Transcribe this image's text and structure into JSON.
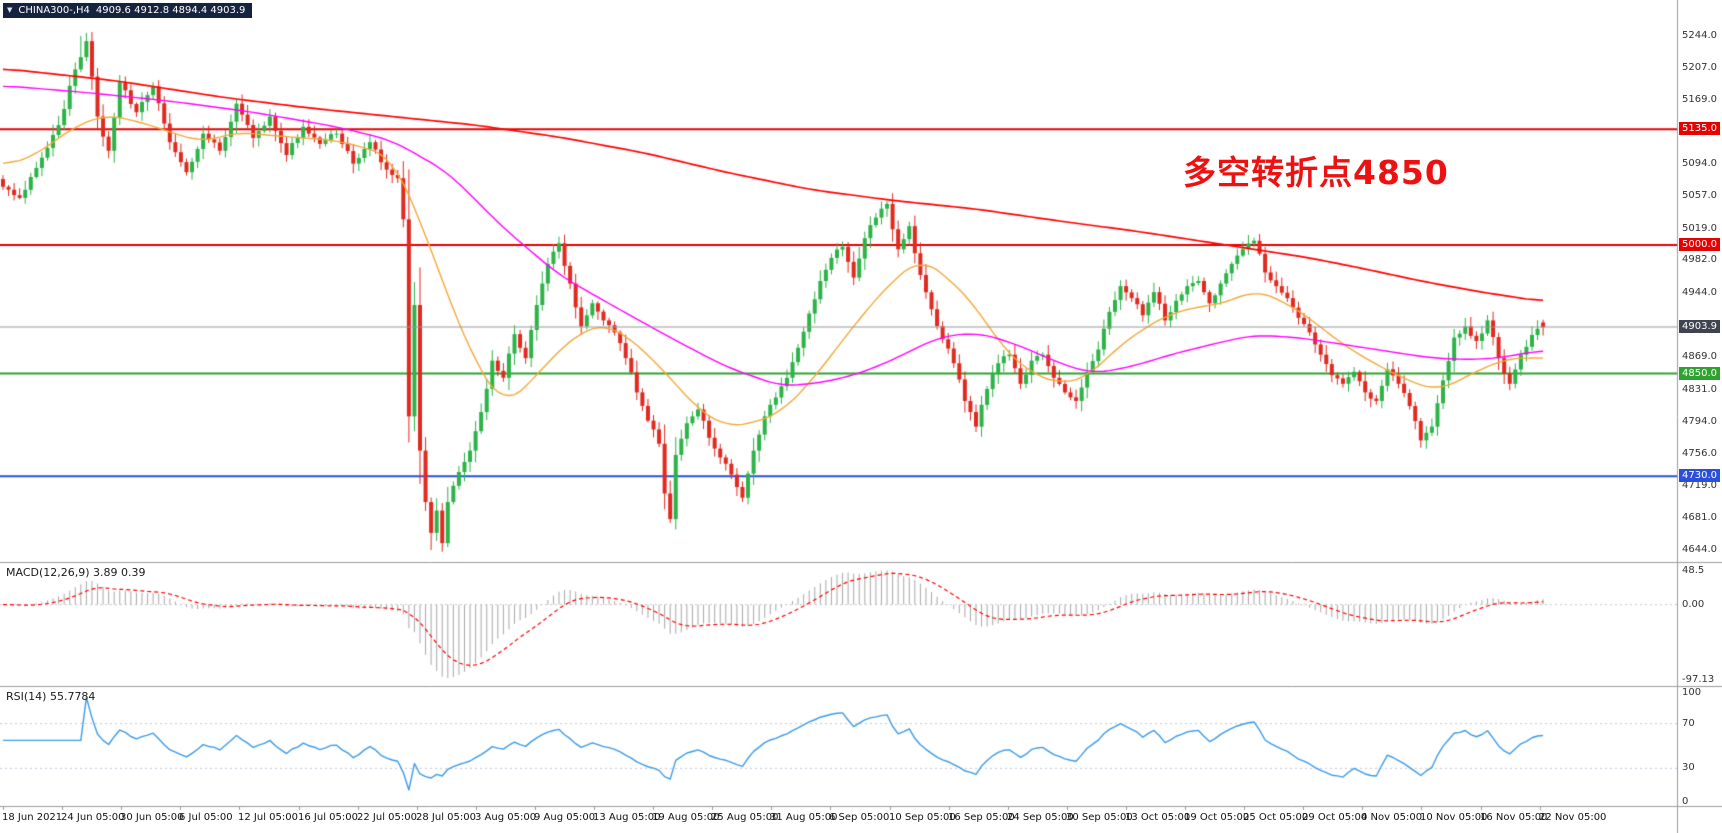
{
  "ticker": {
    "symbol_period": "CHINA300-,H4",
    "ohlc_text": "4909.6 4912.8 4894.4 4903.9"
  },
  "annotation": {
    "text": "多空转折点4850"
  },
  "indicators": {
    "macd_text": "MACD(12,26,9) 3.89 0.39",
    "rsi_text": "RSI(14) 55.7784"
  },
  "colors": {
    "background": "#ffffff",
    "header_bg": "#15233f",
    "candle_up": "#2db348",
    "candle_down": "#e02a20",
    "ma_fast_orange": "#f2a93b",
    "ma_mid_magenta": "#ff00ff",
    "ma_slow_red": "#ff0000",
    "hline_red": "#e60000",
    "hline_green": "#2fa12f",
    "hline_blue": "#2b4fd8",
    "current_price_line": "#999999",
    "current_price_label_bg": "#3e4450",
    "macd_histogram": "#a8a8a8",
    "macd_signal": "#ff0000",
    "rsi_line": "#3c9be8",
    "rsi_level_line": "#c8c8dd",
    "annotation_red": "#ee1111",
    "axis_text": "#333333",
    "separator": "#9b9b9b"
  },
  "chart_data": {
    "type": "candlestick+indicators",
    "symbol": "CHINA300-",
    "timeframe": "H4",
    "current": {
      "open": 4909.6,
      "high": 4912.8,
      "low": 4894.4,
      "close": 4903.9
    },
    "current_price_line": 4903.9,
    "candle_count": 278,
    "extremes": {
      "high": 5244,
      "high_index": 14,
      "low": 4644,
      "low_index": 77
    },
    "y_axis_ticks": [
      5244.0,
      5207.0,
      5169.0,
      5094.0,
      5057.0,
      5019.0,
      4982.0,
      4944.0,
      4869.0,
      4831.0,
      4794.0,
      4756.0,
      4719.0,
      4681.0,
      4644.0
    ],
    "h_lines": [
      {
        "price": 5135.0,
        "color": "#e60000"
      },
      {
        "price": 5000.0,
        "color": "#e60000"
      },
      {
        "price": 4850.0,
        "color": "#2fa12f"
      },
      {
        "price": 4730.0,
        "color": "#2b4fd8"
      }
    ],
    "time_labels": [
      "18 Jun 2021",
      "24 Jun 05:00",
      "30 Jun 05:00",
      "6 Jul 05:00",
      "12 Jul 05:00",
      "16 Jul 05:00",
      "22 Jul 05:00",
      "28 Jul 05:00",
      "3 Aug 05:00",
      "9 Aug 05:00",
      "13 Aug 05:00",
      "19 Aug 05:00",
      "25 Aug 05:00",
      "31 Aug 05:00",
      "6 Sep 05:00",
      "10 Sep 05:00",
      "16 Sep 05:00",
      "24 Sep 05:00",
      "30 Sep 05:00",
      "13 Oct 05:00",
      "19 Oct 05:00",
      "25 Oct 05:00",
      "29 Oct 05:00",
      "4 Nov 05:00",
      "10 Nov 05:00",
      "16 Nov 05:00",
      "22 Nov 05:00"
    ],
    "price_anchors": [
      [
        0,
        5068
      ],
      [
        3,
        5055
      ],
      [
        6,
        5090
      ],
      [
        10,
        5140
      ],
      [
        13,
        5205
      ],
      [
        15,
        5238
      ],
      [
        17,
        5150
      ],
      [
        19,
        5110
      ],
      [
        21,
        5190
      ],
      [
        24,
        5155
      ],
      [
        27,
        5185
      ],
      [
        30,
        5120
      ],
      [
        33,
        5085
      ],
      [
        36,
        5130
      ],
      [
        39,
        5110
      ],
      [
        42,
        5165
      ],
      [
        45,
        5125
      ],
      [
        48,
        5150
      ],
      [
        51,
        5105
      ],
      [
        54,
        5138
      ],
      [
        57,
        5118
      ],
      [
        60,
        5130
      ],
      [
        63,
        5095
      ],
      [
        66,
        5120
      ],
      [
        69,
        5088
      ],
      [
        71,
        5078
      ],
      [
        72,
        5030
      ],
      [
        73,
        4800
      ],
      [
        74,
        4930
      ],
      [
        75,
        4760
      ],
      [
        76,
        4700
      ],
      [
        77,
        4664
      ],
      [
        78,
        4690
      ],
      [
        79,
        4652
      ],
      [
        80,
        4700
      ],
      [
        82,
        4735
      ],
      [
        84,
        4760
      ],
      [
        86,
        4805
      ],
      [
        88,
        4865
      ],
      [
        90,
        4845
      ],
      [
        92,
        4896
      ],
      [
        94,
        4868
      ],
      [
        96,
        4930
      ],
      [
        98,
        4978
      ],
      [
        100,
        5002
      ],
      [
        102,
        4955
      ],
      [
        104,
        4905
      ],
      [
        106,
        4932
      ],
      [
        108,
        4912
      ],
      [
        110,
        4898
      ],
      [
        112,
        4868
      ],
      [
        114,
        4828
      ],
      [
        116,
        4795
      ],
      [
        118,
        4768
      ],
      [
        119,
        4710
      ],
      [
        120,
        4680
      ],
      [
        121,
        4755
      ],
      [
        123,
        4792
      ],
      [
        125,
        4808
      ],
      [
        127,
        4775
      ],
      [
        129,
        4752
      ],
      [
        131,
        4732
      ],
      [
        133,
        4705
      ],
      [
        135,
        4760
      ],
      [
        137,
        4800
      ],
      [
        139,
        4822
      ],
      [
        141,
        4845
      ],
      [
        143,
        4880
      ],
      [
        145,
        4920
      ],
      [
        147,
        4958
      ],
      [
        149,
        4985
      ],
      [
        151,
        4998
      ],
      [
        153,
        4962
      ],
      [
        155,
        5008
      ],
      [
        157,
        5032
      ],
      [
        159,
        5048
      ],
      [
        161,
        4995
      ],
      [
        163,
        5022
      ],
      [
        165,
        4965
      ],
      [
        167,
        4925
      ],
      [
        169,
        4890
      ],
      [
        171,
        4862
      ],
      [
        173,
        4818
      ],
      [
        175,
        4788
      ],
      [
        177,
        4832
      ],
      [
        179,
        4862
      ],
      [
        181,
        4872
      ],
      [
        183,
        4838
      ],
      [
        185,
        4865
      ],
      [
        187,
        4872
      ],
      [
        189,
        4845
      ],
      [
        191,
        4828
      ],
      [
        193,
        4818
      ],
      [
        195,
        4852
      ],
      [
        197,
        4878
      ],
      [
        199,
        4922
      ],
      [
        201,
        4952
      ],
      [
        203,
        4938
      ],
      [
        205,
        4918
      ],
      [
        207,
        4945
      ],
      [
        209,
        4912
      ],
      [
        211,
        4935
      ],
      [
        213,
        4952
      ],
      [
        215,
        4958
      ],
      [
        217,
        4932
      ],
      [
        219,
        4955
      ],
      [
        221,
        4978
      ],
      [
        223,
        4995
      ],
      [
        225,
        5005
      ],
      [
        227,
        4968
      ],
      [
        229,
        4952
      ],
      [
        231,
        4938
      ],
      [
        233,
        4915
      ],
      [
        235,
        4898
      ],
      [
        237,
        4872
      ],
      [
        239,
        4848
      ],
      [
        241,
        4838
      ],
      [
        243,
        4852
      ],
      [
        245,
        4828
      ],
      [
        247,
        4818
      ],
      [
        249,
        4855
      ],
      [
        251,
        4838
      ],
      [
        253,
        4812
      ],
      [
        255,
        4772
      ],
      [
        257,
        4788
      ],
      [
        259,
        4842
      ],
      [
        261,
        4892
      ],
      [
        263,
        4905
      ],
      [
        265,
        4888
      ],
      [
        267,
        4912
      ],
      [
        269,
        4868
      ],
      [
        271,
        4838
      ],
      [
        273,
        4872
      ],
      [
        275,
        4895
      ],
      [
        277,
        4903.9
      ]
    ],
    "moving_averages": [
      {
        "name": "fast-orange",
        "color": "#f2a93b",
        "width": 1.4,
        "anchors": [
          [
            0,
            5092
          ],
          [
            6,
            5105
          ],
          [
            12,
            5135
          ],
          [
            18,
            5152
          ],
          [
            24,
            5145
          ],
          [
            30,
            5132
          ],
          [
            36,
            5120
          ],
          [
            42,
            5132
          ],
          [
            48,
            5128
          ],
          [
            54,
            5125
          ],
          [
            60,
            5122
          ],
          [
            66,
            5112
          ],
          [
            70,
            5102
          ],
          [
            75,
            5030
          ],
          [
            80,
            4940
          ],
          [
            85,
            4862
          ],
          [
            90,
            4812
          ],
          [
            95,
            4840
          ],
          [
            100,
            4878
          ],
          [
            105,
            4902
          ],
          [
            108,
            4908
          ],
          [
            112,
            4895
          ],
          [
            116,
            4872
          ],
          [
            120,
            4845
          ],
          [
            125,
            4808
          ],
          [
            130,
            4788
          ],
          [
            135,
            4792
          ],
          [
            140,
            4805
          ],
          [
            145,
            4838
          ],
          [
            150,
            4880
          ],
          [
            155,
            4922
          ],
          [
            160,
            4958
          ],
          [
            165,
            4985
          ],
          [
            170,
            4962
          ],
          [
            175,
            4928
          ],
          [
            180,
            4878
          ],
          [
            185,
            4850
          ],
          [
            190,
            4838
          ],
          [
            195,
            4845
          ],
          [
            200,
            4878
          ],
          [
            205,
            4902
          ],
          [
            210,
            4920
          ],
          [
            215,
            4928
          ],
          [
            220,
            4932
          ],
          [
            225,
            4948
          ],
          [
            230,
            4935
          ],
          [
            235,
            4915
          ],
          [
            240,
            4888
          ],
          [
            245,
            4868
          ],
          [
            250,
            4850
          ],
          [
            255,
            4836
          ],
          [
            258,
            4830
          ],
          [
            262,
            4842
          ],
          [
            266,
            4856
          ],
          [
            270,
            4866
          ],
          [
            274,
            4870
          ],
          [
            277,
            4866
          ]
        ]
      },
      {
        "name": "mid-magenta",
        "color": "#ff00ff",
        "width": 1.4,
        "anchors": [
          [
            0,
            5186
          ],
          [
            15,
            5178
          ],
          [
            30,
            5168
          ],
          [
            45,
            5155
          ],
          [
            60,
            5138
          ],
          [
            70,
            5122
          ],
          [
            80,
            5085
          ],
          [
            90,
            5020
          ],
          [
            100,
            4965
          ],
          [
            110,
            4928
          ],
          [
            120,
            4892
          ],
          [
            130,
            4858
          ],
          [
            140,
            4835
          ],
          [
            148,
            4840
          ],
          [
            155,
            4852
          ],
          [
            162,
            4872
          ],
          [
            168,
            4892
          ],
          [
            175,
            4898
          ],
          [
            182,
            4885
          ],
          [
            190,
            4862
          ],
          [
            196,
            4850
          ],
          [
            203,
            4858
          ],
          [
            210,
            4872
          ],
          [
            218,
            4885
          ],
          [
            225,
            4895
          ],
          [
            233,
            4892
          ],
          [
            241,
            4884
          ],
          [
            249,
            4876
          ],
          [
            257,
            4868
          ],
          [
            265,
            4866
          ],
          [
            271,
            4870
          ],
          [
            277,
            4878
          ]
        ]
      },
      {
        "name": "slow-red",
        "color": "#ff0000",
        "width": 1.7,
        "anchors": [
          [
            0,
            5206
          ],
          [
            20,
            5192
          ],
          [
            40,
            5172
          ],
          [
            55,
            5160
          ],
          [
            70,
            5150
          ],
          [
            85,
            5140
          ],
          [
            100,
            5126
          ],
          [
            115,
            5108
          ],
          [
            130,
            5085
          ],
          [
            145,
            5065
          ],
          [
            160,
            5052
          ],
          [
            175,
            5042
          ],
          [
            190,
            5028
          ],
          [
            205,
            5015
          ],
          [
            220,
            5000
          ],
          [
            235,
            4985
          ],
          [
            245,
            4972
          ],
          [
            255,
            4958
          ],
          [
            265,
            4946
          ],
          [
            277,
            4934
          ]
        ]
      }
    ],
    "macd": {
      "label": "MACD(12,26,9)",
      "macd_value": 3.89,
      "signal_value": 0.39,
      "axis_max": "48.5",
      "axis_zero": "0.00",
      "axis_min": "-97.13"
    },
    "rsi": {
      "label": "RSI(14)",
      "value": 55.7784,
      "axis": [
        100,
        70,
        30,
        0
      ],
      "levels": [
        70,
        30
      ]
    }
  }
}
